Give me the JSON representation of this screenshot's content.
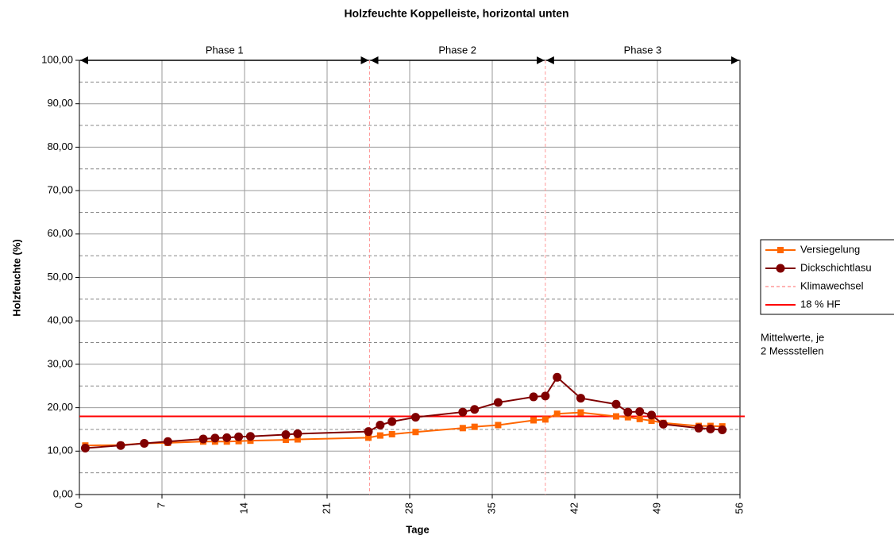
{
  "chart_data": {
    "type": "line",
    "title": "Holzfeuchte Koppelleiste, horizontal unten",
    "x_label": "Tage",
    "y_label": "Holzfeuchte (%)",
    "annotations": [
      "Mittelwerte, je",
      "2 Messstellen"
    ],
    "xlim": [
      0,
      56
    ],
    "xticks": [
      0,
      7,
      14,
      21,
      28,
      35,
      42,
      49,
      56
    ],
    "ylim": [
      0,
      100
    ],
    "yticks": [
      {
        "value": 0,
        "label": "0,00"
      },
      {
        "value": 10,
        "label": "10,00"
      },
      {
        "value": 20,
        "label": "20,00"
      },
      {
        "value": 30,
        "label": "30,00"
      },
      {
        "value": 40,
        "label": "40,00"
      },
      {
        "value": 50,
        "label": "50,00"
      },
      {
        "value": 60,
        "label": "60,00"
      },
      {
        "value": 70,
        "label": "70,00"
      },
      {
        "value": 80,
        "label": "80,00"
      },
      {
        "value": 90,
        "label": "90,00"
      },
      {
        "value": 100,
        "label": "100,00"
      }
    ],
    "minor_yticks": [
      5,
      15,
      25,
      35,
      45,
      55,
      65,
      75,
      85,
      95
    ],
    "grid": true,
    "legend": "right",
    "phases": [
      {
        "label": "Phase 1",
        "start": 0,
        "end": 24.6
      },
      {
        "label": "Phase 2",
        "start": 24.6,
        "end": 39.5
      },
      {
        "label": "Phase 3",
        "start": 39.5,
        "end": 56
      }
    ],
    "series": [
      {
        "name": "Versiegelung",
        "color": "#ff6600",
        "marker": "square",
        "x": [
          0.5,
          3.5,
          5.5,
          7.5,
          10.5,
          11.5,
          12.5,
          13.5,
          14.5,
          17.5,
          18.5,
          24.5,
          25.5,
          26.5,
          28.5,
          32.5,
          33.5,
          35.5,
          38.5,
          39.5,
          40.5,
          42.5,
          45.5,
          46.5,
          47.5,
          48.5,
          49.5,
          52.5,
          53.5,
          54.5
        ],
        "values": [
          11.3,
          11.4,
          11.8,
          11.9,
          12.2,
          12.2,
          12.2,
          12.3,
          12.4,
          12.6,
          12.7,
          13.1,
          13.6,
          13.9,
          14.4,
          15.3,
          15.6,
          16.0,
          17.1,
          17.3,
          18.6,
          18.9,
          18.0,
          17.8,
          17.4,
          17.0,
          16.5,
          15.8,
          15.8,
          15.7
        ]
      },
      {
        "name": "Dickschichtlasu",
        "color": "#800000",
        "marker": "circle",
        "x": [
          0.5,
          3.5,
          5.5,
          7.5,
          10.5,
          11.5,
          12.5,
          13.5,
          14.5,
          17.5,
          18.5,
          24.5,
          25.5,
          26.5,
          28.5,
          32.5,
          33.5,
          35.5,
          38.5,
          39.5,
          40.5,
          42.5,
          45.5,
          46.5,
          47.5,
          48.5,
          49.5,
          52.5,
          53.5,
          54.5
        ],
        "values": [
          10.7,
          11.3,
          11.8,
          12.2,
          12.8,
          13.0,
          13.1,
          13.3,
          13.4,
          13.8,
          14.0,
          14.5,
          16.0,
          16.8,
          17.8,
          19.0,
          19.6,
          21.2,
          22.5,
          22.7,
          27.0,
          22.2,
          20.8,
          19.0,
          19.1,
          18.3,
          16.2,
          15.3,
          15.1,
          14.9
        ]
      }
    ],
    "reference_lines": [
      {
        "name": "Klimawechsel",
        "orientation": "vertical",
        "color": "#ff9999",
        "values": [
          24.6,
          39.5
        ]
      },
      {
        "name": "18 % HF",
        "orientation": "horizontal",
        "color": "#ff0000",
        "values": [
          18
        ]
      }
    ]
  }
}
